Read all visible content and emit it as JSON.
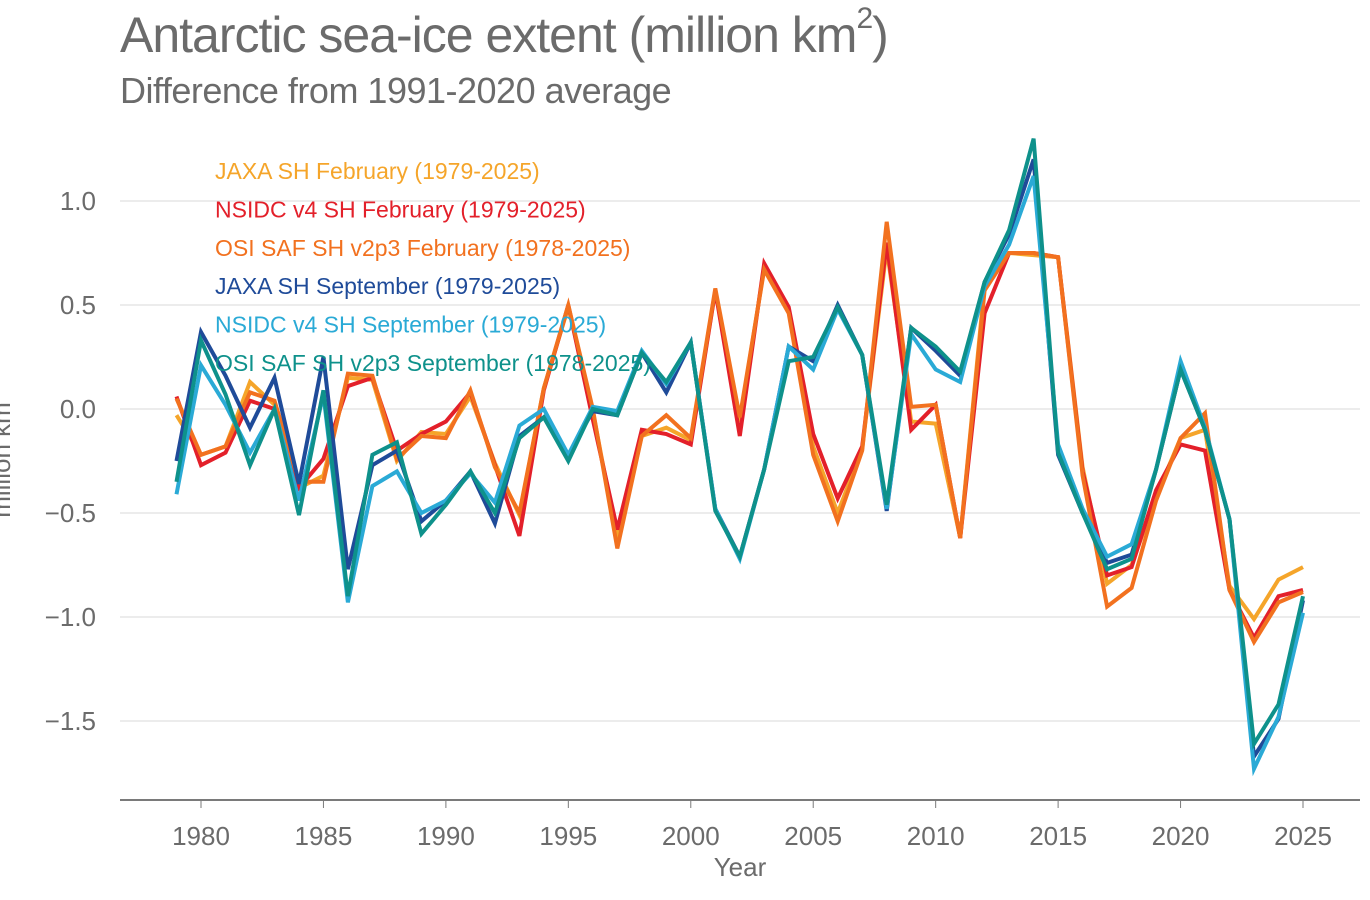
{
  "chart_data": {
    "type": "line",
    "title": "Antarctic sea-ice extent (million km",
    "title_superscript": "2",
    "title_close": ")",
    "subtitle": "Difference from 1991-2020 average",
    "xlabel": "Year",
    "ylabel": "million km",
    "xlim": [
      1976.8,
      2027.3
    ],
    "ylim": [
      -1.88,
      1.4
    ],
    "x_ticks": [
      1980,
      1985,
      1990,
      1995,
      2000,
      2005,
      2010,
      2015,
      2020,
      2025
    ],
    "x_tick_labels": [
      "1980",
      "1985",
      "1990",
      "1995",
      "2000",
      "2005",
      "2010",
      "2015",
      "2020",
      "2025"
    ],
    "y_ticks": [
      1.0,
      0.5,
      0.0,
      -0.5,
      -1.0,
      -1.5
    ],
    "y_tick_labels": [
      "1.0",
      "0.5",
      "0.0",
      "−0.5",
      "−1.0",
      "−1.5"
    ],
    "grid": true,
    "legend_position": "top-left",
    "x": [
      1979,
      1980,
      1981,
      1982,
      1983,
      1984,
      1985,
      1986,
      1987,
      1988,
      1989,
      1990,
      1991,
      1992,
      1993,
      1994,
      1995,
      1996,
      1997,
      1998,
      1999,
      2000,
      2001,
      2002,
      2003,
      2004,
      2005,
      2006,
      2007,
      2008,
      2009,
      2010,
      2011,
      2012,
      2013,
      2014,
      2015,
      2016,
      2017,
      2018,
      2019,
      2020,
      2021,
      2022,
      2023,
      2024,
      2025
    ],
    "series": [
      {
        "name": "JAXA SH February (1979-2025)",
        "color": "#f5a52a",
        "values": [
          -0.03,
          -0.22,
          -0.18,
          0.13,
          0.02,
          -0.38,
          -0.32,
          0.15,
          0.14,
          -0.25,
          -0.11,
          -0.12,
          0.06,
          -0.26,
          -0.51,
          0.1,
          0.49,
          -0.01,
          -0.63,
          -0.13,
          -0.09,
          -0.15,
          0.57,
          -0.06,
          0.68,
          0.47,
          -0.18,
          -0.5,
          -0.19,
          0.77,
          -0.06,
          -0.07,
          -0.62,
          0.6,
          0.75,
          0.74,
          0.73,
          -0.28,
          -0.84,
          -0.75,
          -0.42,
          -0.14,
          -0.1,
          -0.85,
          -1.01,
          -0.82,
          -0.76
        ]
      },
      {
        "name": "NSIDC v4 SH February (1979-2025)",
        "color": "#e3202a",
        "values": [
          0.06,
          -0.27,
          -0.21,
          0.04,
          0.0,
          -0.38,
          -0.24,
          0.11,
          0.15,
          -0.2,
          -0.12,
          -0.06,
          0.08,
          -0.27,
          -0.61,
          0.09,
          0.5,
          -0.05,
          -0.58,
          -0.1,
          -0.12,
          -0.17,
          0.57,
          -0.13,
          0.7,
          0.49,
          -0.12,
          -0.43,
          -0.18,
          0.8,
          -0.1,
          0.02,
          -0.62,
          0.46,
          0.75,
          0.75,
          0.73,
          -0.3,
          -0.8,
          -0.76,
          -0.39,
          -0.17,
          -0.2,
          -0.87,
          -1.1,
          -0.9,
          -0.87
        ]
      },
      {
        "name": "OSI SAF SH v2p3 February (1978-2025)",
        "color": "#f2711f",
        "values": [
          0.05,
          -0.22,
          -0.18,
          0.08,
          0.04,
          -0.35,
          -0.35,
          0.17,
          0.16,
          -0.24,
          -0.13,
          -0.14,
          0.09,
          -0.28,
          -0.5,
          0.1,
          0.5,
          0.0,
          -0.67,
          -0.13,
          -0.03,
          -0.14,
          0.58,
          -0.04,
          0.67,
          0.46,
          -0.22,
          -0.54,
          -0.2,
          0.9,
          0.01,
          0.02,
          -0.62,
          0.57,
          0.75,
          0.75,
          0.73,
          -0.32,
          -0.95,
          -0.86,
          -0.44,
          -0.14,
          -0.02,
          -0.87,
          -1.12,
          -0.93,
          -0.88
        ]
      },
      {
        "name": "JAXA SH September (1979-2025)",
        "color": "#1f4b99",
        "values": [
          -0.25,
          0.37,
          0.16,
          -0.09,
          0.15,
          -0.36,
          0.25,
          -0.77,
          -0.27,
          -0.2,
          -0.54,
          -0.44,
          -0.3,
          -0.55,
          -0.13,
          -0.04,
          -0.22,
          -0.01,
          -0.03,
          0.27,
          0.08,
          0.32,
          -0.48,
          -0.71,
          -0.29,
          0.3,
          0.23,
          0.5,
          0.26,
          -0.49,
          0.39,
          0.28,
          0.16,
          0.61,
          0.84,
          1.2,
          -0.22,
          -0.5,
          -0.74,
          -0.7,
          -0.29,
          0.19,
          -0.1,
          -0.53,
          -1.67,
          -1.49,
          -0.92
        ]
      },
      {
        "name": "NSIDC v4 SH September (1979-2025)",
        "color": "#2aaad6",
        "values": [
          -0.41,
          0.21,
          0.02,
          -0.21,
          0.0,
          -0.44,
          0.07,
          -0.93,
          -0.37,
          -0.3,
          -0.5,
          -0.44,
          -0.31,
          -0.45,
          -0.08,
          0.0,
          -0.22,
          0.01,
          -0.01,
          0.28,
          0.12,
          0.32,
          -0.48,
          -0.72,
          -0.29,
          0.3,
          0.19,
          0.48,
          0.26,
          -0.48,
          0.36,
          0.19,
          0.13,
          0.59,
          0.79,
          1.12,
          -0.17,
          -0.48,
          -0.71,
          -0.65,
          -0.29,
          0.23,
          -0.09,
          -0.53,
          -1.73,
          -1.48,
          -0.98
        ]
      },
      {
        "name": "OSI SAF SH v2p3 September (1978-2025)",
        "color": "#0e918b",
        "values": [
          -0.35,
          0.33,
          0.07,
          -0.27,
          0.0,
          -0.51,
          0.09,
          -0.9,
          -0.22,
          -0.16,
          -0.6,
          -0.46,
          -0.3,
          -0.5,
          -0.14,
          -0.04,
          -0.25,
          0.0,
          -0.03,
          0.27,
          0.13,
          0.32,
          -0.49,
          -0.71,
          -0.29,
          0.23,
          0.25,
          0.49,
          0.26,
          -0.46,
          0.39,
          0.3,
          0.18,
          0.61,
          0.86,
          1.3,
          -0.21,
          -0.5,
          -0.77,
          -0.72,
          -0.29,
          0.19,
          -0.1,
          -0.53,
          -1.61,
          -1.42,
          -0.9
        ]
      }
    ]
  },
  "colors": {
    "text": "#6b6b6b",
    "grid": "#e6e6e6",
    "axis": "#7a7a7a"
  }
}
